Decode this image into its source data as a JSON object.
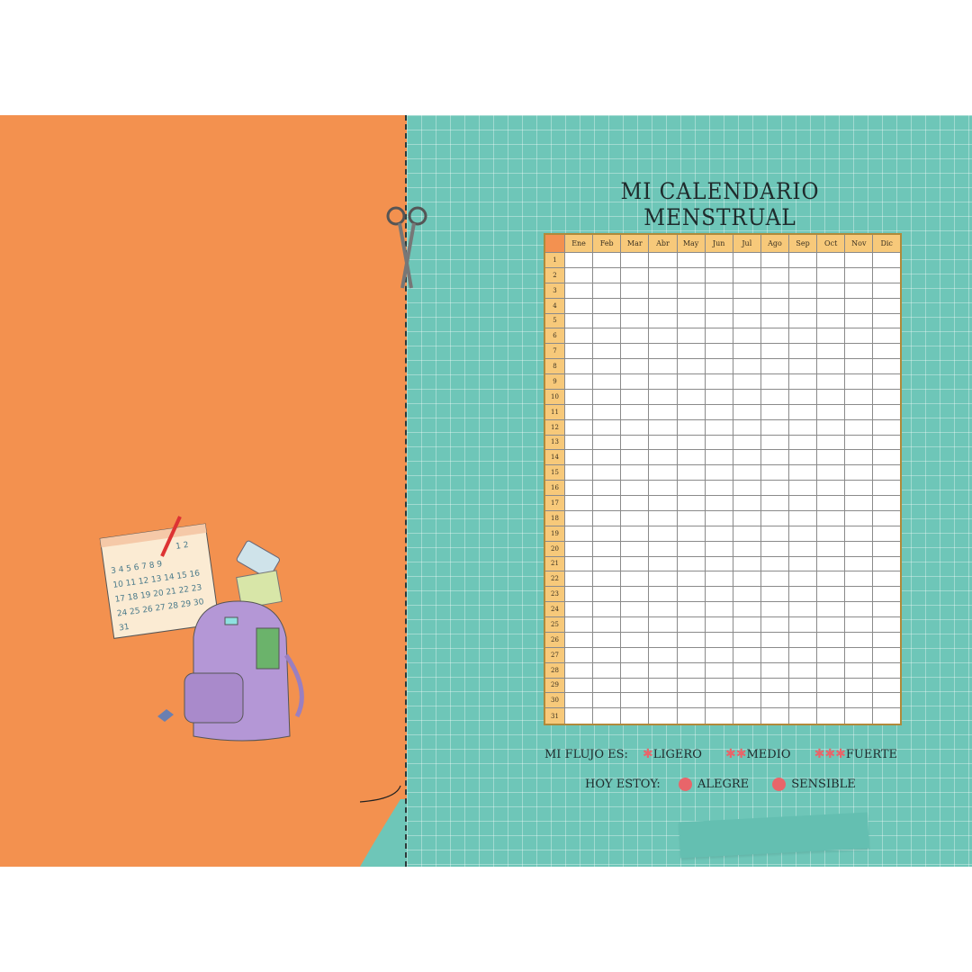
{
  "title": "MI CALENDARIO MENSTRUAL",
  "months": [
    "Ene",
    "Feb",
    "Mar",
    "Abr",
    "May",
    "Jun",
    "Jul",
    "Ago",
    "Sep",
    "Oct",
    "Nov",
    "Dic"
  ],
  "days": [
    "1",
    "2",
    "3",
    "4",
    "5",
    "6",
    "7",
    "8",
    "9",
    "10",
    "11",
    "12",
    "13",
    "14",
    "15",
    "16",
    "17",
    "18",
    "19",
    "20",
    "21",
    "22",
    "23",
    "24",
    "25",
    "26",
    "27",
    "28",
    "29",
    "30",
    "31"
  ],
  "legend": {
    "flow_label": "MI FLUJO ES:",
    "flow": [
      {
        "label": "LIGERO",
        "stars": 1
      },
      {
        "label": "MEDIO",
        "stars": 2
      },
      {
        "label": "FUERTE",
        "stars": 3
      }
    ],
    "mood_label": "HOY ESTOY:",
    "moods": [
      {
        "label": "ALEGRE",
        "icon": "happy-face-icon"
      },
      {
        "label": "SENSIBLE",
        "icon": "sad-face-icon"
      }
    ]
  },
  "colors": {
    "orange": "#F3914F",
    "teal": "#6EC6B8",
    "header": "#F7C97A",
    "accent": "#E8656A"
  }
}
